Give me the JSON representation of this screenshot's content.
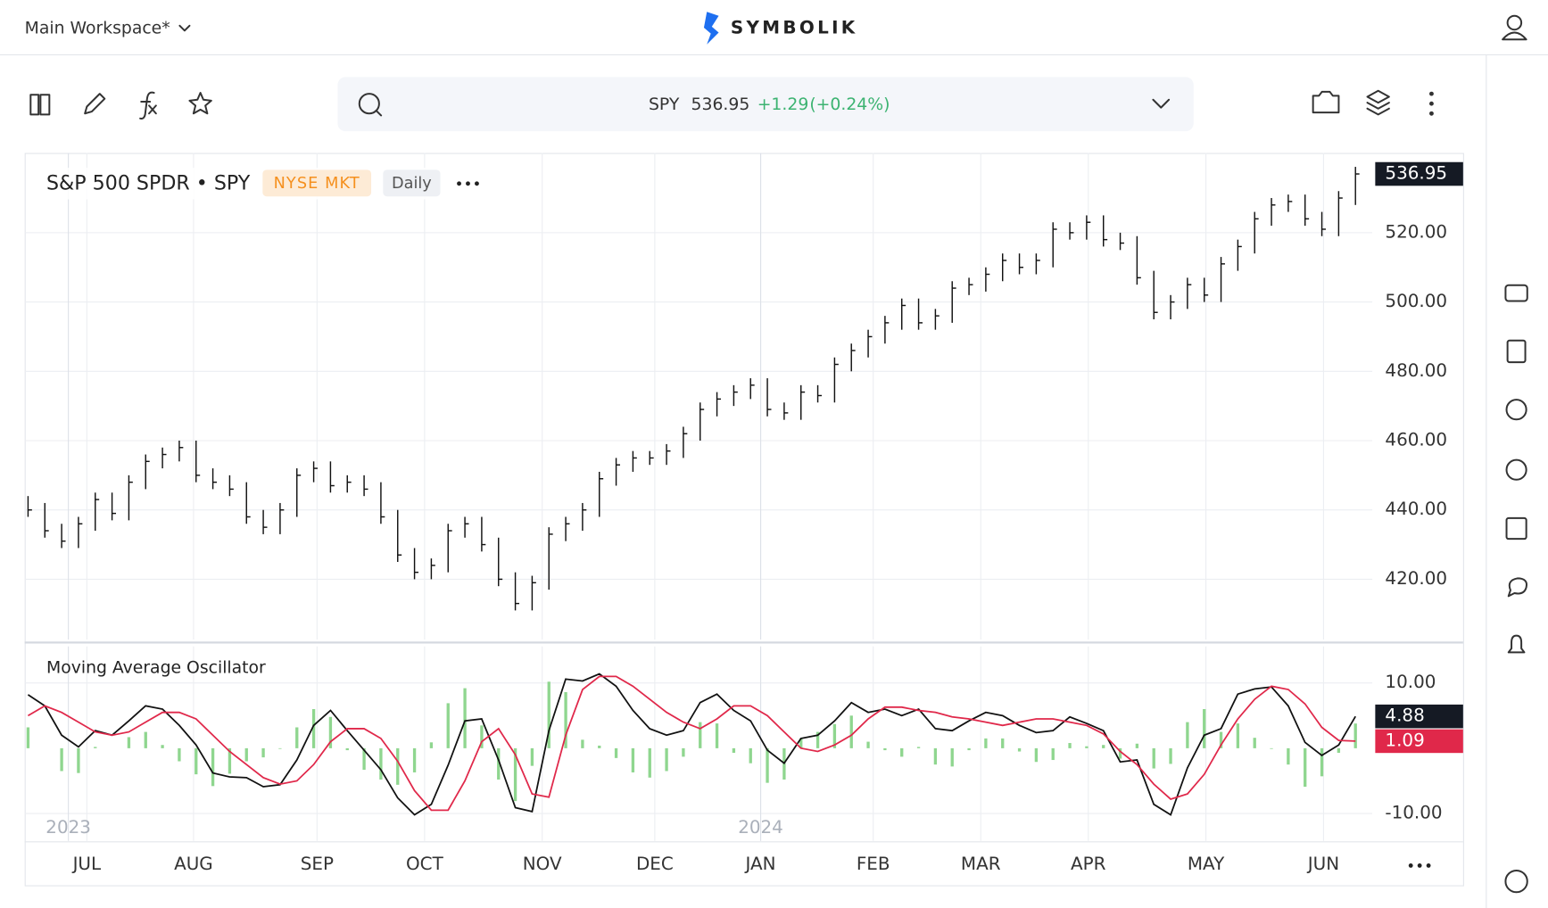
{
  "header": {
    "workspace": "Main Workspace*",
    "logo": "SYMBOLIK"
  },
  "search": {
    "symbol": "SPY",
    "price": "536.95",
    "change": "+1.29",
    "change_pct": "(+0.24%)"
  },
  "chart_data": [
    {
      "type": "ohlc",
      "title": "S&P 500 SPDR • SPY",
      "exchange": "NYSE MKT",
      "interval": "Daily",
      "color": "#111111",
      "high": [
        444,
        442,
        436,
        438,
        445,
        445,
        450,
        456,
        458,
        460,
        460,
        452,
        450,
        448,
        440,
        442,
        452,
        454,
        454,
        450,
        450,
        448,
        440,
        429,
        426,
        436,
        438,
        438,
        432,
        422,
        421,
        435,
        438,
        442,
        451,
        455,
        457,
        457,
        459,
        464,
        471,
        474,
        476,
        478,
        478,
        471,
        476,
        476,
        484,
        488,
        492,
        496,
        501,
        501,
        498,
        506,
        507,
        510,
        514,
        514,
        514,
        523,
        523,
        525,
        525,
        520,
        519,
        509,
        502,
        507,
        507,
        513,
        518,
        526,
        530,
        531,
        531,
        526,
        532,
        539
      ],
      "low": [
        438,
        432,
        429,
        429,
        434,
        437,
        437,
        446,
        452,
        454,
        448,
        446,
        444,
        436,
        433,
        433,
        438,
        448,
        445,
        445,
        444,
        436,
        425,
        420,
        420,
        422,
        432,
        428,
        418,
        411,
        411,
        417,
        431,
        434,
        438,
        447,
        451,
        453,
        453,
        455,
        460,
        467,
        470,
        472,
        467,
        466,
        466,
        471,
        471,
        480,
        484,
        488,
        492,
        492,
        492,
        494,
        502,
        503,
        506,
        508,
        508,
        510,
        518,
        518,
        516,
        515,
        505,
        495,
        495,
        498,
        500,
        500,
        509,
        514,
        522,
        526,
        522,
        519,
        519,
        528
      ],
      "close": [
        440,
        434,
        431,
        436,
        443,
        439,
        448,
        454,
        456,
        458,
        450,
        448,
        446,
        438,
        435,
        440,
        450,
        452,
        447,
        448,
        446,
        438,
        427,
        422,
        424,
        434,
        436,
        430,
        420,
        413,
        419,
        433,
        436,
        440,
        449,
        453,
        455,
        455,
        457,
        462,
        469,
        472,
        474,
        476,
        469,
        468,
        474,
        473,
        482,
        486,
        490,
        494,
        499,
        494,
        496,
        504,
        505,
        508,
        512,
        510,
        512,
        521,
        520,
        523,
        518,
        517,
        507,
        497,
        500,
        505,
        502,
        511,
        516,
        524,
        528,
        529,
        524,
        521,
        530,
        536.95
      ],
      "last_label": "536.95",
      "xlim": [
        -0.2,
        80
      ],
      "ylim": [
        402.6,
        543
      ],
      "yticks": [
        {
          "value": 420,
          "label": "420.00"
        },
        {
          "value": 440,
          "label": "440.00"
        },
        {
          "value": 460,
          "label": "460.00"
        },
        {
          "value": 480,
          "label": "480.00"
        },
        {
          "value": 500,
          "label": "500.00"
        },
        {
          "value": 520,
          "label": "520.00"
        }
      ],
      "grid": true
    },
    {
      "type": "line",
      "title": "Moving Average Oscillator",
      "series": [
        {
          "color": "#111111",
          "values": [
            8.2,
            6.5,
            2,
            0.2,
            2.7,
            2,
            4.2,
            6.5,
            6,
            3.5,
            0.5,
            -3.8,
            -4.4,
            -4.5,
            -5.9,
            -5.6,
            -1.8,
            3.5,
            5.8,
            2.7,
            -0.3,
            -3.3,
            -7.6,
            -10.2,
            -8.6,
            -2.6,
            4.2,
            4.5,
            -1.8,
            -9.1,
            -9.7,
            2.7,
            10.6,
            10.3,
            11.4,
            9.5,
            5.8,
            3,
            2,
            2.7,
            7,
            8.3,
            5.8,
            4.2,
            -0.3,
            -2.3,
            1.5,
            2,
            4.2,
            7,
            5.5,
            6,
            5,
            6,
            3,
            2.7,
            4.2,
            5.5,
            5,
            3.5,
            2.4,
            2.7,
            4.8,
            3.8,
            2.7,
            -2.1,
            -1.8,
            -8.6,
            -10.2,
            -3,
            2,
            3,
            8.3,
            9.1,
            9.4,
            6.5,
            0.9,
            -1.1,
            0.5,
            4.88
          ]
        },
        {
          "color": "#e0284a",
          "values": [
            5,
            6.5,
            5.5,
            4,
            2.5,
            2,
            2.5,
            4,
            5.5,
            5.5,
            4.5,
            2,
            -0.5,
            -2.5,
            -4.5,
            -5.5,
            -5,
            -2.5,
            1,
            3,
            3,
            1.5,
            -2,
            -6.5,
            -9.5,
            -9.5,
            -5,
            1,
            3,
            -1,
            -7,
            -7.5,
            2,
            9,
            11,
            11,
            9.5,
            7.5,
            5.5,
            4,
            3,
            4.5,
            6.5,
            6.5,
            5,
            2.5,
            0,
            -0.5,
            0.5,
            2,
            4.5,
            6.3,
            6.3,
            5.8,
            5.5,
            4.8,
            4.5,
            4,
            3.5,
            4,
            4.5,
            4.5,
            4,
            3.5,
            2.2,
            -0.5,
            -2.5,
            -5.5,
            -7.8,
            -7,
            -4,
            0.5,
            4.5,
            7.5,
            9.5,
            9,
            6.8,
            3.2,
            1.2,
            1.09
          ]
        },
        {
          "color": "#8fd68f",
          "kind": "histogram",
          "values": [
            3.2,
            0,
            -3.5,
            -3.8,
            0.2,
            0,
            1.7,
            2.5,
            0.5,
            -2,
            -4,
            -5.8,
            -3.9,
            -2,
            -1.4,
            -0.1,
            3.2,
            6,
            4.8,
            -0.3,
            -3.3,
            -4.8,
            -5.6,
            -3.7,
            0.9,
            6.9,
            9.2,
            3.5,
            -4.8,
            -8.1,
            -2.7,
            10.2,
            8.6,
            1.3,
            0.4,
            -1.5,
            -3.7,
            -4.5,
            -3.5,
            -1.3,
            4,
            3.8,
            -0.7,
            -2.3,
            -5.3,
            -4.8,
            1.5,
            2.5,
            3.7,
            5,
            1,
            -0.3,
            -1.3,
            0.2,
            -2.5,
            -2.8,
            -0.3,
            1.5,
            1.5,
            -0.5,
            -2.1,
            -1.8,
            0.8,
            0.3,
            0.5,
            -1.6,
            0.7,
            -3.1,
            -2.4,
            4,
            6,
            2.5,
            3.8,
            1.6,
            -0.1,
            -2.5,
            -5.9,
            -4.3,
            -0.7,
            3.79
          ]
        }
      ],
      "last_labels": [
        "4.88",
        "1.09"
      ],
      "xlim": [
        -0.2,
        80
      ],
      "ylim": [
        -14.2,
        15.6
      ],
      "yticks": [
        {
          "value": 10,
          "label": "10.00"
        },
        {
          "value": -10,
          "label": "-10.00"
        }
      ],
      "xticks": [
        {
          "value": 3.5,
          "label": "JUL"
        },
        {
          "value": 9.85,
          "label": "AUG"
        },
        {
          "value": 17.2,
          "label": "SEP"
        },
        {
          "value": 23.6,
          "label": "OCT"
        },
        {
          "value": 30.6,
          "label": "NOV"
        },
        {
          "value": 37.3,
          "label": "DEC"
        },
        {
          "value": 43.6,
          "label": "JAN"
        },
        {
          "value": 50.3,
          "label": "FEB"
        },
        {
          "value": 56.7,
          "label": "MAR"
        },
        {
          "value": 63.1,
          "label": "APR"
        },
        {
          "value": 70.1,
          "label": "MAY"
        },
        {
          "value": 77.1,
          "label": "JUN"
        }
      ],
      "year_ticks": [
        {
          "value": 2.4,
          "label": "2023"
        },
        {
          "value": 43.6,
          "label": "2024"
        }
      ],
      "grid": true
    }
  ]
}
